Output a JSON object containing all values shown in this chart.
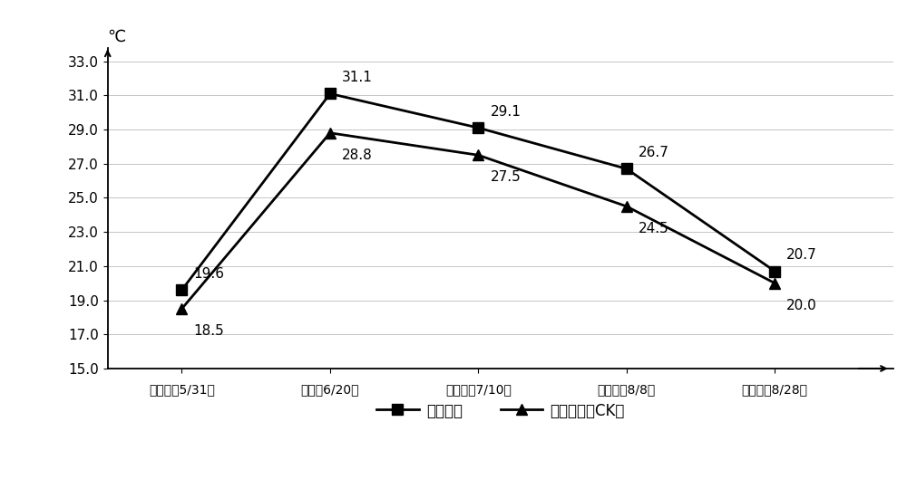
{
  "x_labels": [
    "播种期（5/31）",
    "苗期（6/20）",
    "现蜃期（7/10）",
    "开花期（8/8）",
    "灘浆期（8/28）"
  ],
  "series1_name": "沟膜岄植",
  "series1_values": [
    19.6,
    31.1,
    29.1,
    26.7,
    20.7
  ],
  "series1_labels": [
    "19.6",
    "31.1",
    "29.1",
    "26.7",
    "20.7"
  ],
  "series2_name": "常规平作（CK）",
  "series2_values": [
    18.5,
    28.8,
    27.5,
    24.5,
    20.0
  ],
  "series2_labels": [
    "18.5",
    "28.8",
    "27.5",
    "24.5",
    "20.0"
  ],
  "ylabel": "℃",
  "ylim_min": 15.0,
  "ylim_max": 33.8,
  "yticks": [
    15.0,
    17.0,
    19.0,
    21.0,
    23.0,
    25.0,
    27.0,
    29.0,
    31.0,
    33.0
  ],
  "line_color": "#000000",
  "marker1": "s",
  "marker2": "^",
  "marker_size": 8,
  "line_width": 2.0,
  "font_size_tick": 11,
  "font_size_label": 13,
  "font_size_legend": 12,
  "font_size_annot": 11,
  "background_color": "#ffffff"
}
